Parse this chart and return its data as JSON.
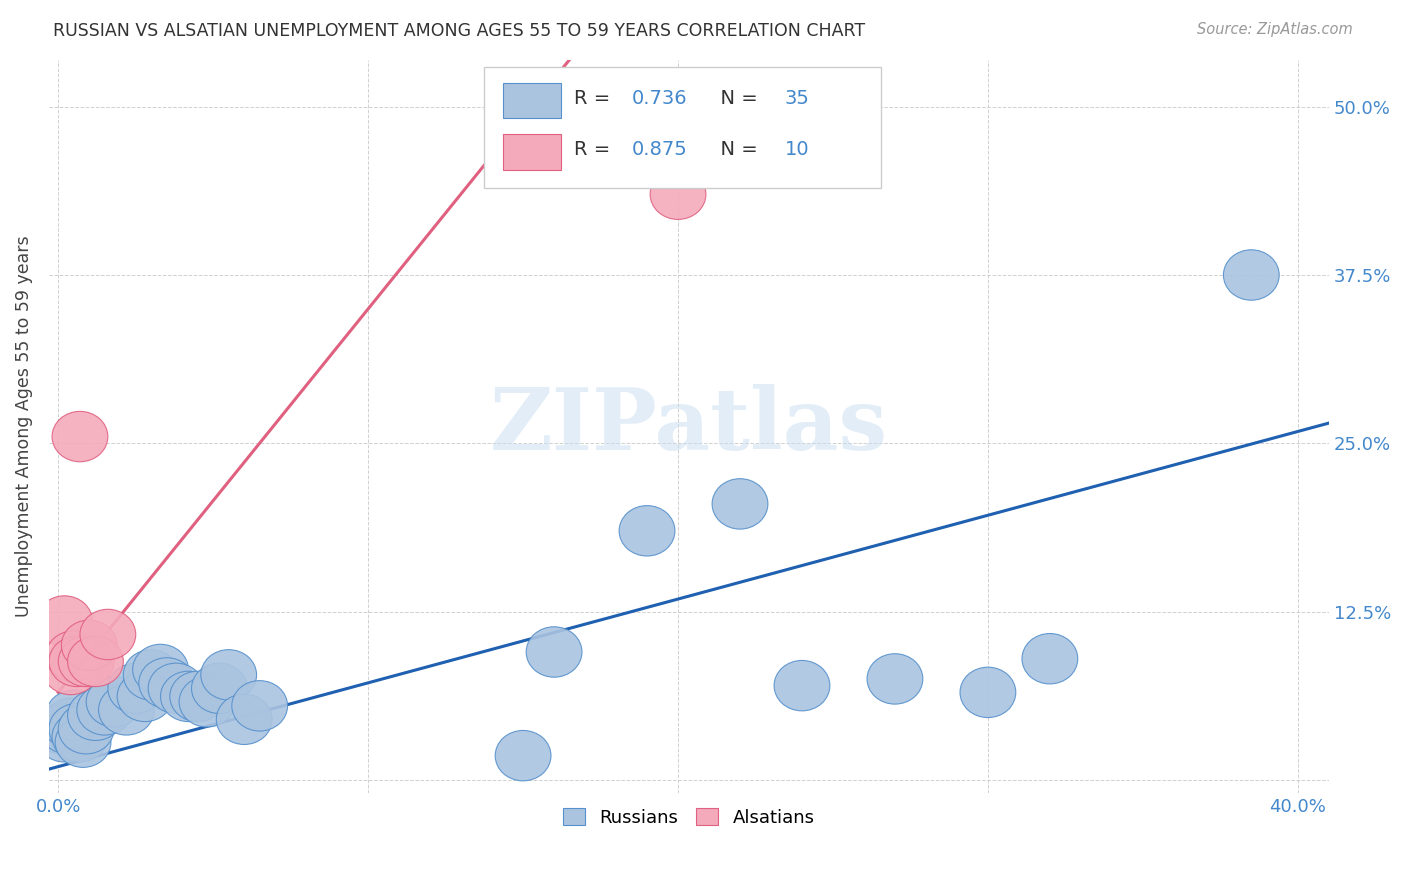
{
  "title": "RUSSIAN VS ALSATIAN UNEMPLOYMENT AMONG AGES 55 TO 59 YEARS CORRELATION CHART",
  "source": "Source: ZipAtlas.com",
  "ylabel": "Unemployment Among Ages 55 to 59 years",
  "xlim": [
    -0.003,
    0.41
  ],
  "ylim": [
    -0.01,
    0.535
  ],
  "xticks": [
    0.0,
    0.1,
    0.2,
    0.3,
    0.4
  ],
  "xtick_labels": [
    "0.0%",
    "",
    "",
    "",
    "40.0%"
  ],
  "yticks": [
    0.0,
    0.125,
    0.25,
    0.375,
    0.5
  ],
  "ytick_labels_right": [
    "",
    "12.5%",
    "25.0%",
    "37.5%",
    "50.0%"
  ],
  "russian_R": "0.736",
  "russian_N": "35",
  "alsatian_R": "0.875",
  "alsatian_N": "10",
  "russian_color": "#aac4e0",
  "alsatian_color": "#f4aabb",
  "russian_edge_color": "#5590cc",
  "alsatian_edge_color": "#e06080",
  "russian_line_color": "#2060b0",
  "alsatian_line_color": "#e06080",
  "tick_color": "#4488cc",
  "watermark": "ZIPatlas",
  "background_color": "#ffffff",
  "russian_x": [
    0.001,
    0.002,
    0.003,
    0.004,
    0.005,
    0.006,
    0.007,
    0.008,
    0.009,
    0.012,
    0.015,
    0.018,
    0.022,
    0.025,
    0.028,
    0.03,
    0.033,
    0.035,
    0.038,
    0.042,
    0.045,
    0.048,
    0.052,
    0.055,
    0.06,
    0.065,
    0.15,
    0.16,
    0.19,
    0.22,
    0.24,
    0.27,
    0.3,
    0.32,
    0.385
  ],
  "russian_y": [
    0.038,
    0.032,
    0.038,
    0.042,
    0.048,
    0.038,
    0.032,
    0.028,
    0.038,
    0.048,
    0.052,
    0.058,
    0.052,
    0.068,
    0.062,
    0.078,
    0.082,
    0.072,
    0.068,
    0.062,
    0.062,
    0.058,
    0.068,
    0.078,
    0.045,
    0.055,
    0.018,
    0.095,
    0.185,
    0.205,
    0.07,
    0.075,
    0.065,
    0.09,
    0.375
  ],
  "alsatian_x": [
    0.002,
    0.004,
    0.005,
    0.006,
    0.007,
    0.009,
    0.01,
    0.012,
    0.016,
    0.2
  ],
  "alsatian_y": [
    0.118,
    0.082,
    0.092,
    0.088,
    0.255,
    0.088,
    0.1,
    0.088,
    0.108,
    0.435
  ],
  "russian_line_x": [
    -0.003,
    0.41
  ],
  "russian_line_y": [
    0.008,
    0.265
  ],
  "alsatian_line_x": [
    0.0,
    0.165
  ],
  "alsatian_line_y": [
    0.065,
    0.535
  ],
  "circle_size": 0.012,
  "legend_R_color": "#4488cc",
  "legend_N_color": "#4488cc"
}
